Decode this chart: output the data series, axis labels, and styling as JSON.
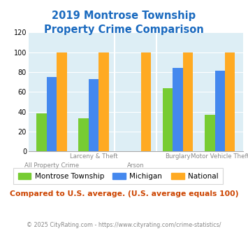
{
  "title_line1": "2019 Montrose Township",
  "title_line2": "Property Crime Comparison",
  "title_color": "#1a6abf",
  "categories": [
    "All Property Crime",
    "Larceny & Theft",
    "Arson",
    "Burglary",
    "Motor Vehicle Theft"
  ],
  "montrose": [
    38,
    33,
    0,
    64,
    37
  ],
  "michigan": [
    75,
    73,
    0,
    84,
    81
  ],
  "national": [
    100,
    100,
    100,
    100,
    100
  ],
  "color_montrose": "#77cc33",
  "color_michigan": "#4488ee",
  "color_national": "#ffaa22",
  "ylim": [
    0,
    120
  ],
  "yticks": [
    0,
    20,
    40,
    60,
    80,
    100,
    120
  ],
  "background_color": "#ddeef5",
  "legend_labels": [
    "Montrose Township",
    "Michigan",
    "National"
  ],
  "note_text": "Compared to U.S. average. (U.S. average equals 100)",
  "note_color": "#cc4400",
  "footer_text": "© 2025 CityRating.com - https://www.cityrating.com/crime-statistics/",
  "footer_color": "#888888",
  "xlabel_top": [
    "",
    "Larceny & Theft",
    "",
    "Burglary",
    "Motor Vehicle Theft"
  ],
  "xlabel_bottom": [
    "All Property Crime",
    "",
    "Arson",
    "",
    ""
  ]
}
